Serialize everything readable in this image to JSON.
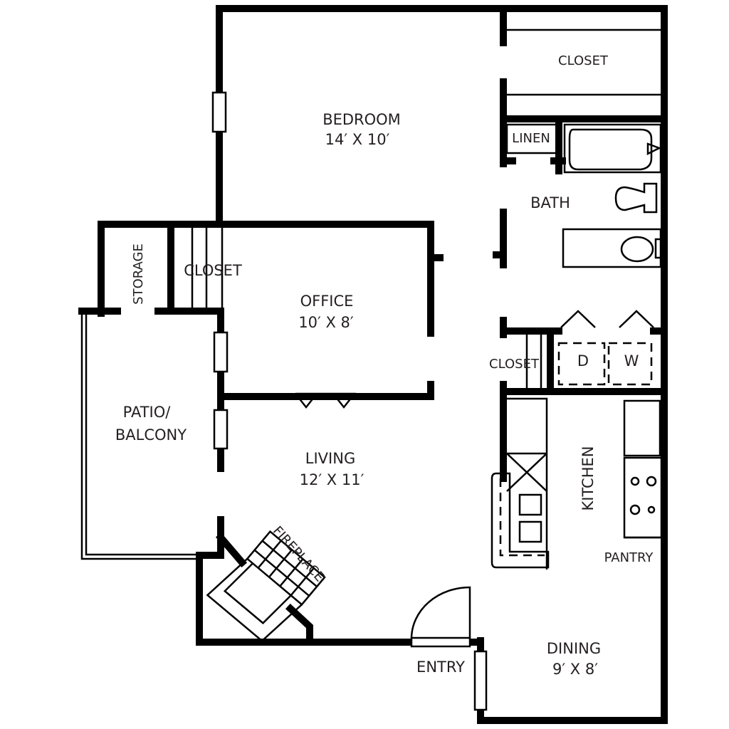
{
  "rooms": {
    "bedroom": {
      "name": "BEDROOM",
      "size": "14′ X 10′"
    },
    "office": {
      "name": "OFFICE",
      "size": "10′ X 8′"
    },
    "living": {
      "name": "LIVING",
      "size": "12′ X 11′"
    },
    "dining": {
      "name": "DINING",
      "size": "9′ X 8′"
    },
    "patio": {
      "name_line1": "PATIO/",
      "name_line2": "BALCONY"
    },
    "bath": {
      "name": "BATH"
    },
    "kitchen": {
      "name": "KITCHEN"
    }
  },
  "labels": {
    "closet_bedroom": "CLOSET",
    "closet_office": "CLOSET",
    "closet_hall": "CLOSET",
    "linen": "LINEN",
    "storage": "STORAGE",
    "fireplace": "FIREPLACE",
    "pantry": "PANTRY",
    "entry": "ENTRY",
    "dryer": "D",
    "washer": "W"
  },
  "colors": {
    "wall": "#000000",
    "text": "#231f20",
    "background": "#ffffff"
  }
}
